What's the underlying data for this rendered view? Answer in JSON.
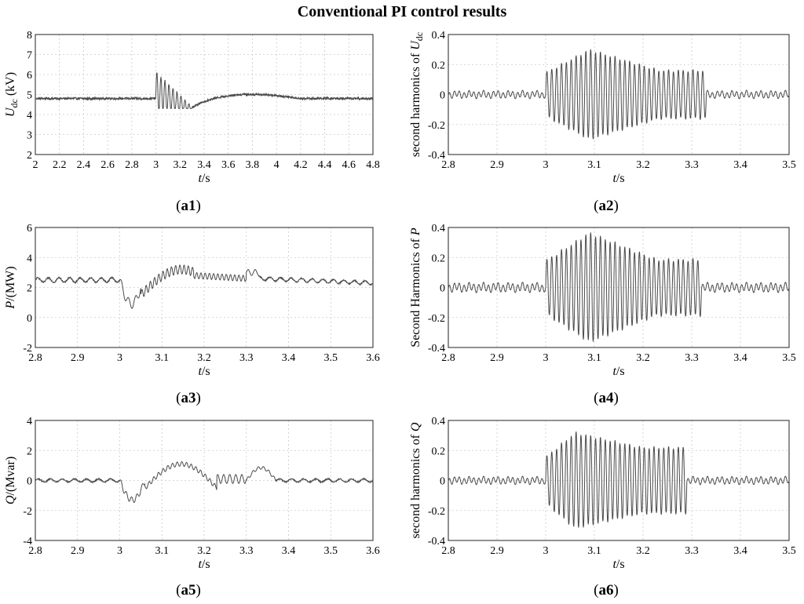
{
  "figure_title": "Conventional PI control results",
  "chart_data": [
    {
      "id": "a1",
      "type": "line",
      "caption": "a1",
      "ylabel_main": "U",
      "ylabel_sub": "dc",
      "ylabel_tail": " (kV)",
      "xlabel_italic": "t",
      "xlabel_tail": "/s",
      "xlim": [
        2,
        4.8
      ],
      "ylim": [
        2,
        8
      ],
      "xticks": [
        "2",
        "2.2",
        "2.4",
        "2.6",
        "2.8",
        "3",
        "3.2",
        "3.4",
        "3.6",
        "3.8",
        "4",
        "4.2",
        "4.4",
        "4.6",
        "4.8"
      ],
      "yticks": [
        "2",
        "3",
        "4",
        "5",
        "6",
        "7",
        "8"
      ],
      "series": [
        {
          "name": "Udc",
          "kind": "udc",
          "baseline": 4.8,
          "peak": 5.75,
          "disturbance_start": 3.0,
          "dip_min": 4.3,
          "recovery_peak": 5.05
        }
      ]
    },
    {
      "id": "a2",
      "type": "line",
      "caption": "a2",
      "ylabel_prefix": "second harmonics of ",
      "ylabel_main": "U",
      "ylabel_sub": "dc",
      "xlabel_italic": "t",
      "xlabel_tail": "/s",
      "xlim": [
        2.8,
        3.5
      ],
      "ylim": [
        -0.4,
        0.4
      ],
      "xticks": [
        "2.8",
        "2.9",
        "3",
        "3.1",
        "3.2",
        "3.3",
        "3.4",
        "3.5"
      ],
      "yticks": [
        "-0.4",
        "-0.2",
        "0",
        "0.2",
        "0.4"
      ],
      "series": [
        {
          "name": "2nd harmonic Udc",
          "kind": "burst",
          "start": 3.0,
          "end": 3.33,
          "peak_time": 3.09,
          "peak": 0.28,
          "tail": 0.14,
          "noise": 0.02
        }
      ]
    },
    {
      "id": "a3",
      "type": "line",
      "caption": "a3",
      "ylabel_main": "P",
      "ylabel_tail": "/(MW)",
      "xlabel_italic": "t",
      "xlabel_tail": "/s",
      "xlim": [
        2.8,
        3.6
      ],
      "ylim": [
        -2,
        6
      ],
      "xticks": [
        "2.8",
        "2.9",
        "3",
        "3.1",
        "3.2",
        "3.3",
        "3.4",
        "3.5",
        "3.6"
      ],
      "yticks": [
        "-2",
        "0",
        "2",
        "4",
        "6"
      ],
      "series": [
        {
          "name": "P",
          "kind": "power_p",
          "baseline": 2.5,
          "dip_min": 0.9,
          "recovery_peak": 3.2
        }
      ]
    },
    {
      "id": "a4",
      "type": "line",
      "caption": "a4",
      "ylabel_prefix": "Second Harmonics of ",
      "ylabel_main": "P",
      "xlabel_italic": "t",
      "xlabel_tail": "/s",
      "xlim": [
        2.8,
        3.5
      ],
      "ylim": [
        -0.4,
        0.4
      ],
      "xticks": [
        "2.8",
        "2.9",
        "3",
        "3.1",
        "3.2",
        "3.3",
        "3.4",
        "3.5"
      ],
      "yticks": [
        "-0.4",
        "-0.2",
        "0",
        "0.2",
        "0.4"
      ],
      "series": [
        {
          "name": "2nd harmonic P",
          "kind": "burst",
          "start": 3.0,
          "end": 3.32,
          "peak_time": 3.09,
          "peak": 0.34,
          "tail": 0.16,
          "noise": 0.025
        }
      ]
    },
    {
      "id": "a5",
      "type": "line",
      "caption": "a5",
      "ylabel_main": "Q",
      "ylabel_tail": "/(Mvar)",
      "xlabel_italic": "t",
      "xlabel_tail": "/s",
      "xlim": [
        2.8,
        3.6
      ],
      "ylim": [
        -4,
        4
      ],
      "xticks": [
        "2.8",
        "2.9",
        "3",
        "3.1",
        "3.2",
        "3.3",
        "3.4",
        "3.5",
        "3.6"
      ],
      "yticks": [
        "-4",
        "-2",
        "0",
        "2",
        "4"
      ],
      "series": [
        {
          "name": "Q",
          "kind": "power_q",
          "baseline": 0.0,
          "dip_min": -1.3,
          "recovery_peak": 1.1
        }
      ]
    },
    {
      "id": "a6",
      "type": "line",
      "caption": "a6",
      "ylabel_prefix": "second harmonics of ",
      "ylabel_main": "Q",
      "xlabel_italic": "t",
      "xlabel_tail": "/s",
      "xlim": [
        2.8,
        3.5
      ],
      "ylim": [
        -0.4,
        0.4
      ],
      "xticks": [
        "2.8",
        "2.9",
        "3",
        "3.1",
        "3.2",
        "3.3",
        "3.4",
        "3.5"
      ],
      "yticks": [
        "-0.4",
        "-0.2",
        "0",
        "0.2",
        "0.4"
      ],
      "series": [
        {
          "name": "2nd harmonic Q",
          "kind": "burst",
          "start": 3.0,
          "end": 3.29,
          "peak_time": 3.06,
          "peak": 0.3,
          "tail": 0.2,
          "noise": 0.02
        }
      ]
    }
  ]
}
